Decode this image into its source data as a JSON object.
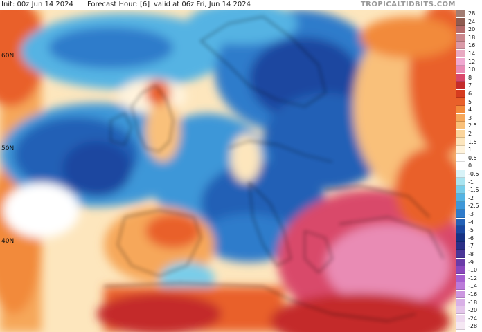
{
  "header": {
    "init": "Init: 00z Jun 14 2024",
    "forecast_hour": "Forecast Hour: [6]",
    "valid": "valid at 06z Fri, Jun 14 2024",
    "brand": "TROPICALTIDBITS.COM"
  },
  "map": {
    "lat_labels": [
      "60N",
      "50N",
      "40N"
    ]
  },
  "legend": {
    "levels": [
      {
        "label": "28",
        "color": "#a27d73"
      },
      {
        "label": "24",
        "color": "#8f5b50"
      },
      {
        "label": "20",
        "color": "#b36a6a"
      },
      {
        "label": "18",
        "color": "#c9868c"
      },
      {
        "label": "16",
        "color": "#d99aa8"
      },
      {
        "label": "14",
        "color": "#e8a9c2"
      },
      {
        "label": "12",
        "color": "#f0a8d0"
      },
      {
        "label": "10",
        "color": "#e98bb4"
      },
      {
        "label": "8",
        "color": "#d9486b"
      },
      {
        "label": "7",
        "color": "#c42b2b"
      },
      {
        "label": "6",
        "color": "#d63c1f"
      },
      {
        "label": "5",
        "color": "#e9602a"
      },
      {
        "label": "4",
        "color": "#f28a3a"
      },
      {
        "label": "3",
        "color": "#f6a75a"
      },
      {
        "label": "2.5",
        "color": "#f9c07a"
      },
      {
        "label": "2",
        "color": "#fbd59c"
      },
      {
        "label": "1.5",
        "color": "#fde6bd"
      },
      {
        "label": "1",
        "color": "#fff3dc"
      },
      {
        "label": "0.5",
        "color": "#ffffff"
      },
      {
        "label": "0",
        "color": "#ffffff"
      },
      {
        "label": "-0.5",
        "color": "#d8f3f8"
      },
      {
        "label": "-1",
        "color": "#a9e4f0"
      },
      {
        "label": "-1.5",
        "color": "#79cde9"
      },
      {
        "label": "-2",
        "color": "#54b3e3"
      },
      {
        "label": "-2.5",
        "color": "#3e97d8"
      },
      {
        "label": "-3",
        "color": "#2f7bcb"
      },
      {
        "label": "-4",
        "color": "#2360b6"
      },
      {
        "label": "-5",
        "color": "#1b47a0"
      },
      {
        "label": "-6",
        "color": "#173183"
      },
      {
        "label": "-7",
        "color": "#2a2f86"
      },
      {
        "label": "-8",
        "color": "#4a3597"
      },
      {
        "label": "-9",
        "color": "#6a3ba8"
      },
      {
        "label": "-10",
        "color": "#8a47bd"
      },
      {
        "label": "-12",
        "color": "#a65fd0"
      },
      {
        "label": "-14",
        "color": "#bb7ad9"
      },
      {
        "label": "-16",
        "color": "#cc96e0"
      },
      {
        "label": "-18",
        "color": "#d9b0e6"
      },
      {
        "label": "-20",
        "color": "#e4c6ea"
      },
      {
        "label": "-24",
        "color": "#eed9ef"
      },
      {
        "label": "-28",
        "color": "#f5e8f3"
      }
    ]
  }
}
